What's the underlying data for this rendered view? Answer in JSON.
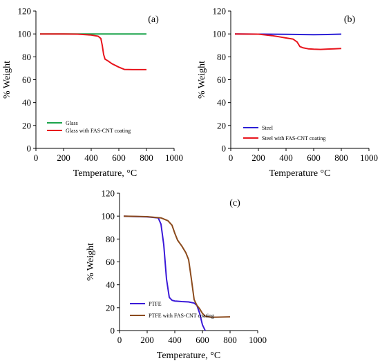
{
  "chart_data": [
    {
      "type": "line",
      "panel_label": "(a)",
      "xlabel": "Temperature, °C",
      "ylabel": "% Weight",
      "xlim": [
        0,
        1000
      ],
      "ylim": [
        0,
        120
      ],
      "xticks": [
        "0",
        "200",
        "400",
        "600",
        "800",
        "1000"
      ],
      "yticks": [
        "0",
        "20",
        "40",
        "60",
        "80",
        "100",
        "120"
      ],
      "legend_position": "bottom-left",
      "series": [
        {
          "name": "Glass",
          "color": "#1aa34a",
          "x": [
            30,
            200,
            400,
            500,
            600,
            700,
            800
          ],
          "y": [
            100,
            100,
            100,
            100,
            100,
            100,
            100
          ]
        },
        {
          "name": "Glass with FAS-CNT coating",
          "color": "#e8141c",
          "x": [
            30,
            200,
            300,
            400,
            450,
            470,
            480,
            490,
            500,
            520,
            550,
            600,
            640,
            700,
            800
          ],
          "y": [
            100,
            100,
            99.8,
            99,
            98,
            96,
            90,
            82,
            78,
            76.5,
            74,
            71,
            69,
            68.8,
            68.8
          ]
        }
      ]
    },
    {
      "type": "line",
      "panel_label": "(b)",
      "xlabel": "Temperature °C",
      "ylabel": "% Weight",
      "xlim": [
        0,
        1000
      ],
      "ylim": [
        0,
        120
      ],
      "xticks": [
        "0",
        "200",
        "400",
        "600",
        "800",
        "1000"
      ],
      "yticks": [
        "0",
        "20",
        "40",
        "60",
        "80",
        "100",
        "120"
      ],
      "legend_position": "bottom-left",
      "series": [
        {
          "name": "Steel",
          "color": "#2b1fd6",
          "x": [
            30,
            200,
            400,
            500,
            600,
            700,
            800
          ],
          "y": [
            100,
            99.8,
            99.6,
            99.5,
            99.4,
            99.5,
            99.8
          ]
        },
        {
          "name": "Steel with FAS-CNT coating",
          "color": "#e8141c",
          "x": [
            30,
            200,
            300,
            350,
            400,
            450,
            480,
            500,
            520,
            560,
            600,
            650,
            700,
            750,
            800
          ],
          "y": [
            100,
            99.8,
            98.5,
            97.5,
            96.5,
            95.5,
            93,
            89,
            88,
            87,
            86.7,
            86.5,
            86.8,
            87,
            87.3
          ]
        }
      ]
    },
    {
      "type": "line",
      "panel_label": "(c)",
      "xlabel": "Temperature, °C",
      "ylabel": "% Weight",
      "xlim": [
        0,
        1000
      ],
      "ylim": [
        0,
        120
      ],
      "xticks": [
        "0",
        "200",
        "400",
        "600",
        "800",
        "1000"
      ],
      "yticks": [
        "0",
        "20",
        "40",
        "60",
        "80",
        "100",
        "120"
      ],
      "legend_position": "bottom-left",
      "series": [
        {
          "name": "PTFE",
          "color": "#3a18d8",
          "x": [
            30,
            100,
            200,
            280,
            300,
            320,
            340,
            360,
            380,
            400,
            450,
            500,
            540,
            560,
            580,
            600,
            620
          ],
          "y": [
            100,
            99.7,
            99.3,
            98.5,
            93,
            75,
            45,
            29,
            26.5,
            25.8,
            25.3,
            25,
            24,
            22,
            15,
            5,
            0
          ]
        },
        {
          "name": "PTFE with FAS-CNT coating",
          "color": "#8b4a1c",
          "x": [
            30,
            100,
            200,
            300,
            350,
            380,
            400,
            420,
            450,
            480,
            500,
            520,
            540,
            560,
            580,
            600,
            620,
            660,
            700,
            750,
            800
          ],
          "y": [
            100,
            99.8,
            99.5,
            98.5,
            96,
            92,
            85,
            79,
            74,
            68,
            62,
            45,
            27,
            22,
            19,
            15,
            12.5,
            11.7,
            11.7,
            11.8,
            12
          ]
        }
      ]
    }
  ]
}
